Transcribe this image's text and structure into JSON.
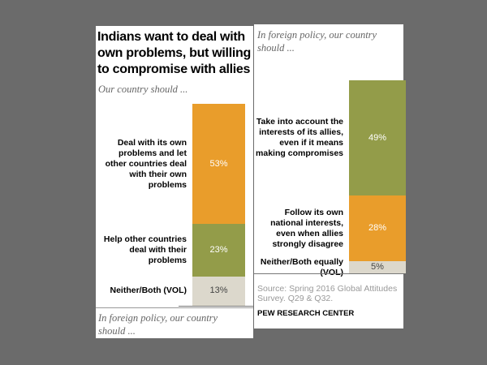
{
  "chart_data": [
    {
      "type": "bar",
      "stacked": true,
      "title": "Indians want to deal with own problems, but willing to compromise with allies",
      "subtitle": "Our country should ...",
      "categories": [
        "Deal with its own problems and let other countries deal with their own problems",
        "Help other countries deal with their problems",
        "Neither/Both (VOL)"
      ],
      "values": [
        53,
        23,
        13
      ],
      "labels": [
        "53%",
        "23%",
        "13%"
      ],
      "colors": [
        "#e99d2b",
        "#939c49",
        "#dcd8cc"
      ],
      "label_colors": [
        "#ffffff",
        "#ffffff",
        "#444444"
      ]
    },
    {
      "type": "bar",
      "stacked": true,
      "subtitle": "In foreign policy, our country should ...",
      "categories": [
        "Take into account the interests of its allies, even if it means making compromises",
        "Follow its own national interests, even when allies strongly disagree",
        "Neither/Both equally (VOL)"
      ],
      "values": [
        49,
        28,
        5
      ],
      "labels": [
        "49%",
        "28%",
        "5%"
      ],
      "colors": [
        "#939c49",
        "#e99d2b",
        "#dcd8cc"
      ],
      "label_colors": [
        "#ffffff",
        "#ffffff",
        "#444444"
      ]
    }
  ],
  "footer_left": "In foreign policy, our country should ...",
  "source": "Source: Spring 2016 Global Attitudes Survey. Q29 & Q32.",
  "brand": "PEW RESEARCH CENTER"
}
